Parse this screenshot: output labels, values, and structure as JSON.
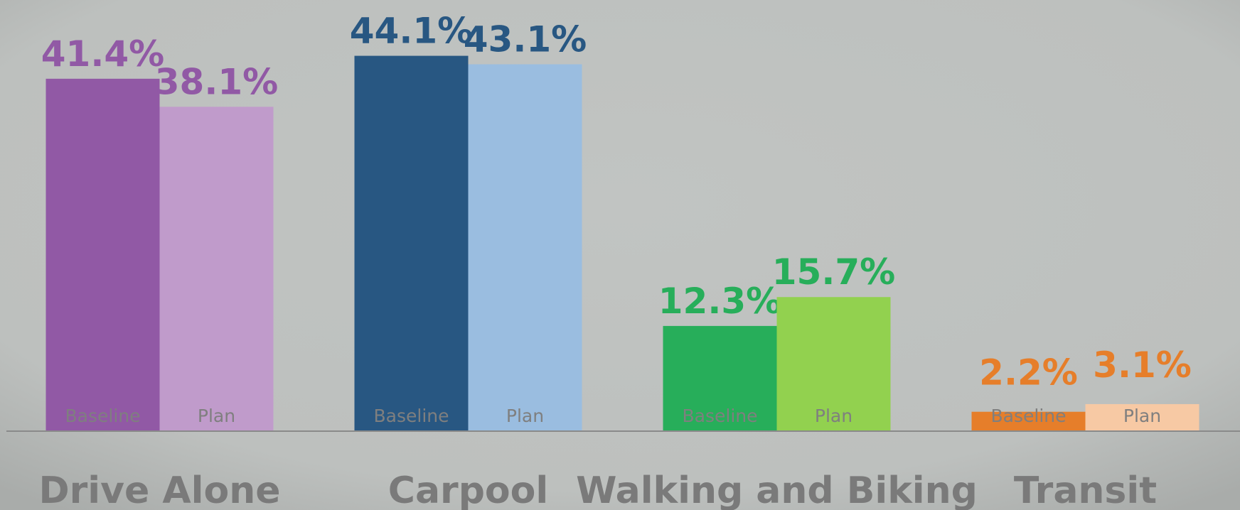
{
  "chart_data": {
    "type": "bar",
    "categories": [
      "Drive Alone",
      "Carpool",
      "Walking and Biking",
      "Transit"
    ],
    "series": [
      {
        "name": "Baseline",
        "colors": [
          "#9159a5",
          "#285782",
          "#27ae5a",
          "#e67e2a"
        ],
        "values": [
          41.4,
          44.1,
          12.3,
          2.2
        ],
        "value_labels": [
          "41.4%",
          "44.1%",
          "12.3%",
          "2.2%"
        ]
      },
      {
        "name": "Plan",
        "colors": [
          "#c09bcb",
          "#9abde0",
          "#92d14f",
          "#f7c9a4"
        ],
        "values": [
          38.1,
          43.1,
          15.7,
          3.1
        ],
        "value_labels": [
          "38.1%",
          "43.1%",
          "15.7%",
          "3.1%"
        ]
      }
    ]
  }
}
